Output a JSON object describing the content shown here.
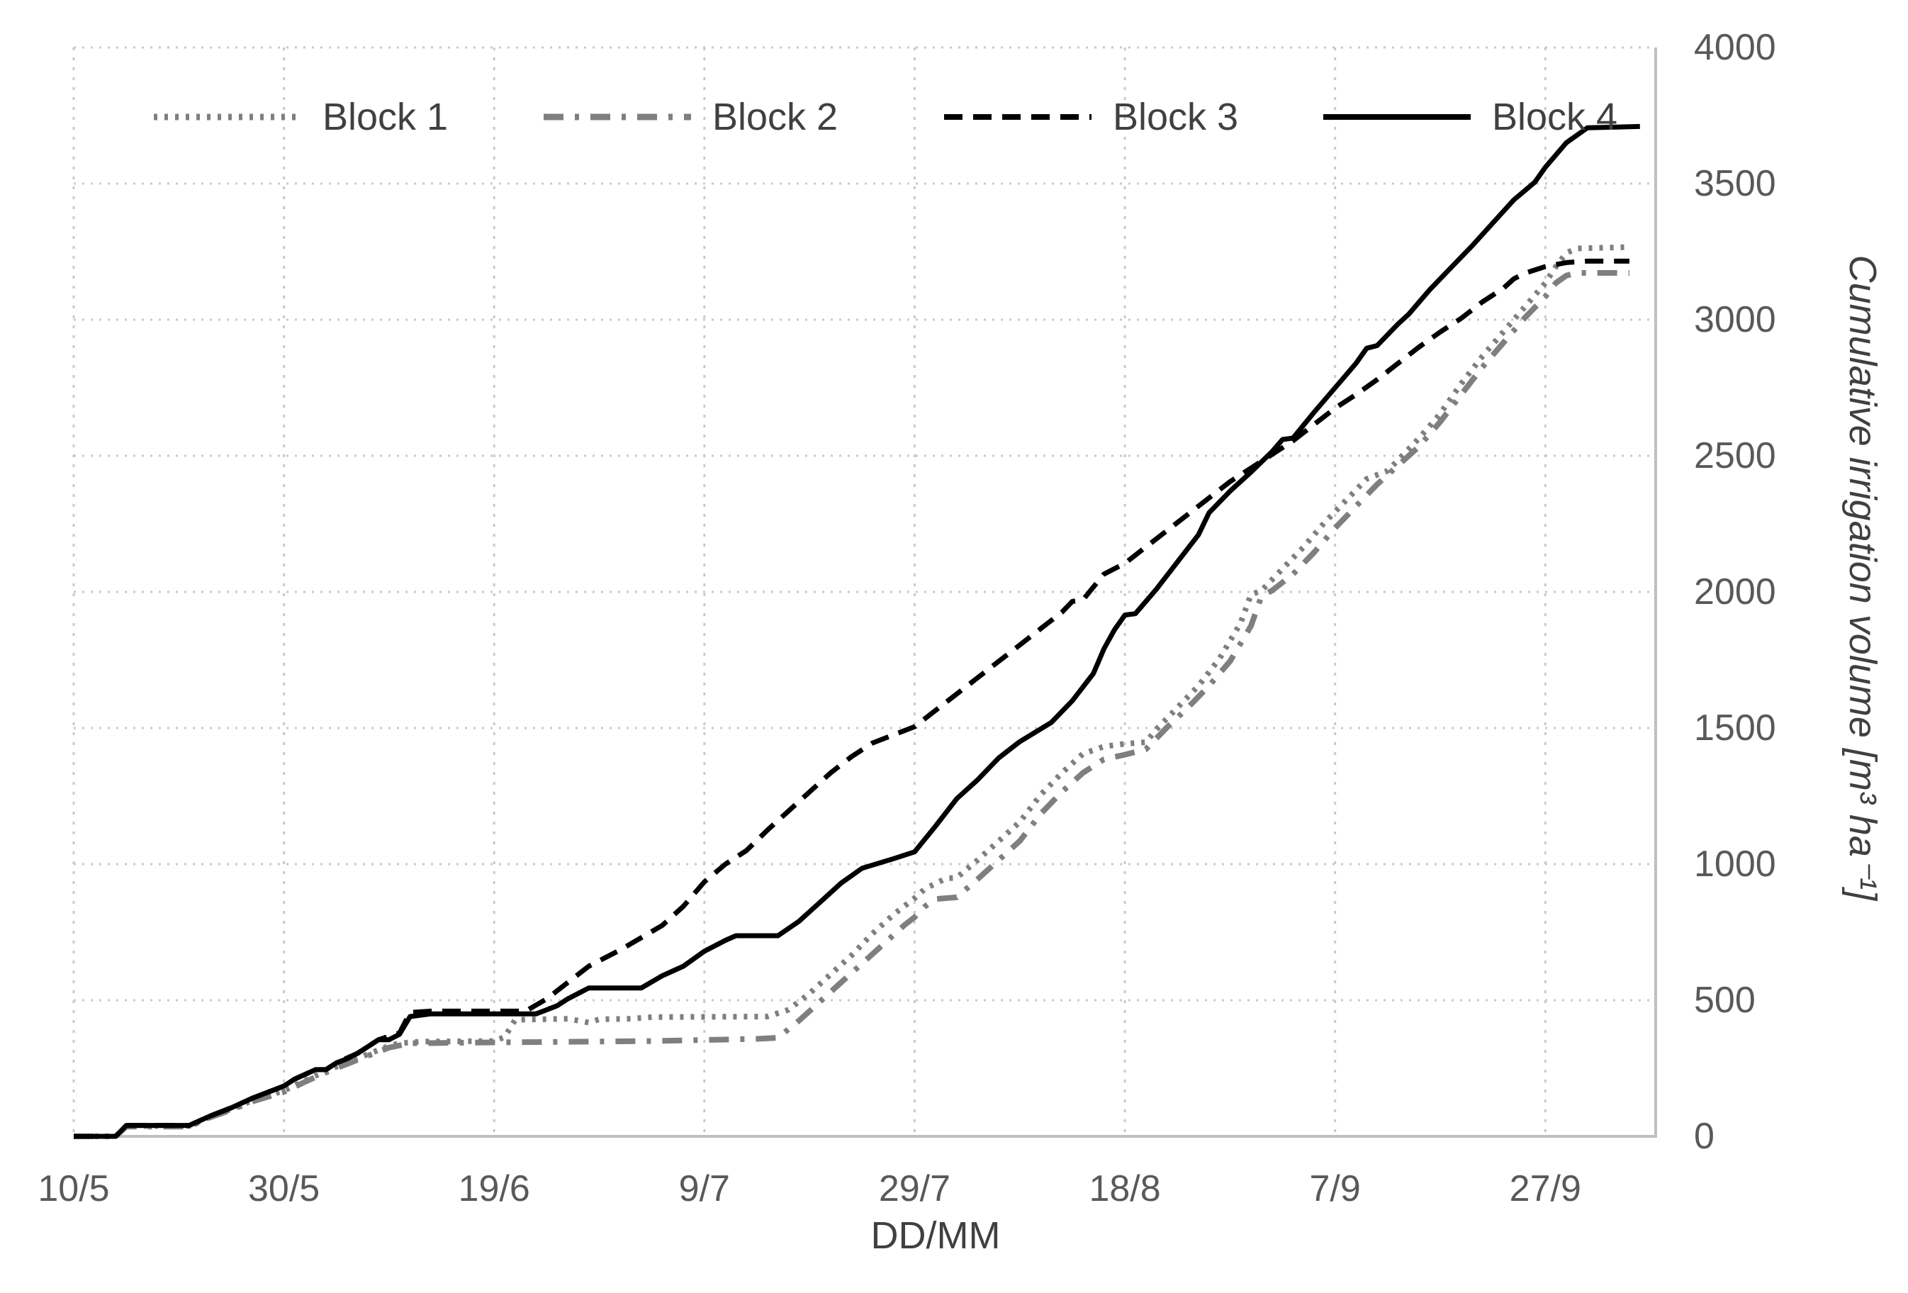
{
  "chart_data": {
    "type": "line",
    "title": "",
    "xlabel": "DD/MM",
    "ylabel": "Cumulative irrigation volume [m³ ha⁻¹]",
    "x_unit": "days since 10/5",
    "xlim": [
      0,
      150.5
    ],
    "ylim": [
      0,
      4000
    ],
    "grid": "dotted-both-axes",
    "legend_position": "top-inside-horizontal",
    "axis_color": "#bfbfbf",
    "gridline_color": "#c9c9c9",
    "tick_label_color": "#595959",
    "axis_title_color": "#404040",
    "x_ticks": [
      {
        "day": 0,
        "label": "10/5"
      },
      {
        "day": 20,
        "label": "30/5"
      },
      {
        "day": 40,
        "label": "19/6"
      },
      {
        "day": 60,
        "label": "9/7"
      },
      {
        "day": 80,
        "label": "29/7"
      },
      {
        "day": 100,
        "label": "18/8"
      },
      {
        "day": 120,
        "label": "7/9"
      },
      {
        "day": 140,
        "label": "27/9"
      }
    ],
    "y_ticks": [
      0,
      500,
      1000,
      1500,
      2000,
      2500,
      3000,
      3500,
      4000
    ],
    "series": [
      {
        "name": "Block 1",
        "color": "#7f7f7f",
        "style": "dotted",
        "stroke_width": 8,
        "dasharray": "5 10",
        "points": [
          [
            0,
            0
          ],
          [
            4,
            0
          ],
          [
            5,
            38
          ],
          [
            11,
            38
          ],
          [
            13,
            72
          ],
          [
            15,
            100
          ],
          [
            17,
            132
          ],
          [
            20,
            168
          ],
          [
            22,
            205
          ],
          [
            24,
            240
          ],
          [
            26,
            272
          ],
          [
            28,
            302
          ],
          [
            30,
            332
          ],
          [
            31,
            342
          ],
          [
            33,
            348
          ],
          [
            40,
            350
          ],
          [
            41,
            365
          ],
          [
            42,
            428
          ],
          [
            47,
            432
          ],
          [
            49,
            418
          ],
          [
            50,
            430
          ],
          [
            53,
            432
          ],
          [
            55,
            438
          ],
          [
            66,
            440
          ],
          [
            68,
            465
          ],
          [
            70,
            525
          ],
          [
            72,
            595
          ],
          [
            74,
            665
          ],
          [
            76,
            745
          ],
          [
            78,
            815
          ],
          [
            80,
            875
          ],
          [
            81,
            910
          ],
          [
            83,
            948
          ],
          [
            84,
            950
          ],
          [
            86,
            1015
          ],
          [
            88,
            1085
          ],
          [
            90,
            1155
          ],
          [
            92,
            1255
          ],
          [
            94,
            1335
          ],
          [
            96,
            1405
          ],
          [
            98,
            1432
          ],
          [
            100,
            1442
          ],
          [
            102,
            1448
          ],
          [
            103,
            1495
          ],
          [
            105,
            1575
          ],
          [
            107,
            1655
          ],
          [
            109,
            1755
          ],
          [
            111,
            1885
          ],
          [
            112,
            1990
          ],
          [
            113,
            2005
          ],
          [
            115,
            2085
          ],
          [
            117,
            2165
          ],
          [
            119,
            2255
          ],
          [
            121,
            2335
          ],
          [
            123,
            2415
          ],
          [
            125,
            2445
          ],
          [
            126,
            2485
          ],
          [
            128,
            2565
          ],
          [
            130,
            2655
          ],
          [
            132,
            2765
          ],
          [
            134,
            2865
          ],
          [
            136,
            2955
          ],
          [
            138,
            3045
          ],
          [
            140,
            3135
          ],
          [
            141,
            3195
          ],
          [
            142,
            3245
          ],
          [
            143,
            3262
          ],
          [
            148,
            3267
          ]
        ]
      },
      {
        "name": "Block 2",
        "color": "#7f7f7f",
        "style": "dash-dot",
        "stroke_width": 8,
        "dasharray": "28 16 6 16",
        "points": [
          [
            0,
            0
          ],
          [
            4,
            0
          ],
          [
            5,
            36
          ],
          [
            11,
            36
          ],
          [
            13,
            70
          ],
          [
            15,
            97
          ],
          [
            17,
            128
          ],
          [
            20,
            163
          ],
          [
            22,
            200
          ],
          [
            24,
            235
          ],
          [
            26,
            266
          ],
          [
            28,
            296
          ],
          [
            30,
            326
          ],
          [
            32,
            342
          ],
          [
            40,
            345
          ],
          [
            55,
            350
          ],
          [
            65,
            358
          ],
          [
            67,
            362
          ],
          [
            69,
            425
          ],
          [
            71,
            495
          ],
          [
            73,
            565
          ],
          [
            75,
            635
          ],
          [
            77,
            705
          ],
          [
            79,
            775
          ],
          [
            80,
            805
          ],
          [
            81,
            845
          ],
          [
            82,
            872
          ],
          [
            84,
            878
          ],
          [
            86,
            945
          ],
          [
            88,
            1015
          ],
          [
            90,
            1085
          ],
          [
            92,
            1185
          ],
          [
            94,
            1265
          ],
          [
            96,
            1335
          ],
          [
            98,
            1385
          ],
          [
            100,
            1402
          ],
          [
            102,
            1422
          ],
          [
            104,
            1502
          ],
          [
            106,
            1575
          ],
          [
            108,
            1655
          ],
          [
            110,
            1745
          ],
          [
            112,
            1875
          ],
          [
            113,
            1985
          ],
          [
            114,
            2005
          ],
          [
            116,
            2065
          ],
          [
            118,
            2145
          ],
          [
            120,
            2235
          ],
          [
            122,
            2315
          ],
          [
            124,
            2395
          ],
          [
            126,
            2465
          ],
          [
            128,
            2535
          ],
          [
            130,
            2625
          ],
          [
            132,
            2725
          ],
          [
            134,
            2825
          ],
          [
            136,
            2915
          ],
          [
            138,
            3005
          ],
          [
            140,
            3085
          ],
          [
            141,
            3135
          ],
          [
            142,
            3162
          ],
          [
            143,
            3172
          ],
          [
            148,
            3172
          ]
        ]
      },
      {
        "name": "Block 3",
        "color": "#000000",
        "style": "dashed",
        "stroke_width": 7,
        "dasharray": "26 15",
        "points": [
          [
            0,
            0
          ],
          [
            4,
            0
          ],
          [
            5,
            40
          ],
          [
            11,
            40
          ],
          [
            13,
            75
          ],
          [
            15,
            105
          ],
          [
            17,
            140
          ],
          [
            20,
            185
          ],
          [
            21,
            210
          ],
          [
            23,
            245
          ],
          [
            24,
            245
          ],
          [
            25,
            270
          ],
          [
            27,
            305
          ],
          [
            29,
            355
          ],
          [
            31,
            380
          ],
          [
            32,
            455
          ],
          [
            34,
            460
          ],
          [
            43,
            460
          ],
          [
            45,
            505
          ],
          [
            47,
            565
          ],
          [
            49,
            625
          ],
          [
            51,
            665
          ],
          [
            52,
            685
          ],
          [
            54,
            730
          ],
          [
            56,
            775
          ],
          [
            58,
            845
          ],
          [
            60,
            935
          ],
          [
            62,
            1000
          ],
          [
            64,
            1050
          ],
          [
            66,
            1125
          ],
          [
            68,
            1195
          ],
          [
            70,
            1265
          ],
          [
            72,
            1335
          ],
          [
            74,
            1395
          ],
          [
            76,
            1445
          ],
          [
            78,
            1475
          ],
          [
            80,
            1505
          ],
          [
            82,
            1565
          ],
          [
            84,
            1625
          ],
          [
            86,
            1685
          ],
          [
            88,
            1745
          ],
          [
            90,
            1805
          ],
          [
            92,
            1865
          ],
          [
            94,
            1925
          ],
          [
            95,
            1965
          ],
          [
            96,
            1970
          ],
          [
            98,
            2065
          ],
          [
            100,
            2105
          ],
          [
            102,
            2165
          ],
          [
            104,
            2225
          ],
          [
            106,
            2285
          ],
          [
            108,
            2345
          ],
          [
            110,
            2405
          ],
          [
            112,
            2455
          ],
          [
            114,
            2505
          ],
          [
            116,
            2555
          ],
          [
            118,
            2615
          ],
          [
            120,
            2675
          ],
          [
            122,
            2725
          ],
          [
            124,
            2780
          ],
          [
            126,
            2840
          ],
          [
            128,
            2900
          ],
          [
            130,
            2955
          ],
          [
            132,
            3005
          ],
          [
            134,
            3065
          ],
          [
            136,
            3115
          ],
          [
            137,
            3150
          ],
          [
            138,
            3170
          ],
          [
            140,
            3195
          ],
          [
            142,
            3210
          ],
          [
            144,
            3215
          ],
          [
            148,
            3215
          ]
        ]
      },
      {
        "name": "Block 4",
        "color": "#000000",
        "style": "solid",
        "stroke_width": 7,
        "dasharray": "",
        "points": [
          [
            0,
            0
          ],
          [
            4,
            0
          ],
          [
            5,
            40
          ],
          [
            11,
            40
          ],
          [
            13,
            75
          ],
          [
            15,
            105
          ],
          [
            17,
            140
          ],
          [
            20,
            185
          ],
          [
            21,
            210
          ],
          [
            23,
            245
          ],
          [
            24,
            245
          ],
          [
            25,
            270
          ],
          [
            26,
            285
          ],
          [
            27,
            305
          ],
          [
            28,
            330
          ],
          [
            29,
            355
          ],
          [
            30,
            355
          ],
          [
            31,
            375
          ],
          [
            32,
            440
          ],
          [
            34,
            450
          ],
          [
            44,
            450
          ],
          [
            46,
            480
          ],
          [
            47,
            505
          ],
          [
            49,
            545
          ],
          [
            54,
            545
          ],
          [
            56,
            590
          ],
          [
            58,
            625
          ],
          [
            60,
            680
          ],
          [
            62,
            720
          ],
          [
            63,
            737
          ],
          [
            67,
            737
          ],
          [
            69,
            790
          ],
          [
            71,
            860
          ],
          [
            73,
            930
          ],
          [
            75,
            985
          ],
          [
            78,
            1020
          ],
          [
            80,
            1045
          ],
          [
            82,
            1140
          ],
          [
            84,
            1240
          ],
          [
            86,
            1310
          ],
          [
            88,
            1390
          ],
          [
            90,
            1450
          ],
          [
            93,
            1520
          ],
          [
            95,
            1600
          ],
          [
            97,
            1700
          ],
          [
            98,
            1790
          ],
          [
            99,
            1860
          ],
          [
            100,
            1915
          ],
          [
            101,
            1920
          ],
          [
            103,
            2010
          ],
          [
            105,
            2110
          ],
          [
            107,
            2210
          ],
          [
            108,
            2290
          ],
          [
            110,
            2370
          ],
          [
            112,
            2440
          ],
          [
            114,
            2515
          ],
          [
            115,
            2560
          ],
          [
            116,
            2565
          ],
          [
            118,
            2660
          ],
          [
            120,
            2750
          ],
          [
            122,
            2840
          ],
          [
            123,
            2895
          ],
          [
            124,
            2905
          ],
          [
            126,
            2985
          ],
          [
            127,
            3020
          ],
          [
            129,
            3110
          ],
          [
            131,
            3190
          ],
          [
            133,
            3270
          ],
          [
            135,
            3355
          ],
          [
            137,
            3440
          ],
          [
            139,
            3505
          ],
          [
            140,
            3560
          ],
          [
            142,
            3650
          ],
          [
            144,
            3705
          ],
          [
            149,
            3710
          ]
        ]
      }
    ]
  },
  "legend": {
    "items": [
      "Block 1",
      "Block 2",
      "Block 3",
      "Block 4"
    ]
  },
  "x_axis_title": "DD/MM",
  "y_axis_title": "Cumulative irrigation volume [m³ ha⁻¹]"
}
